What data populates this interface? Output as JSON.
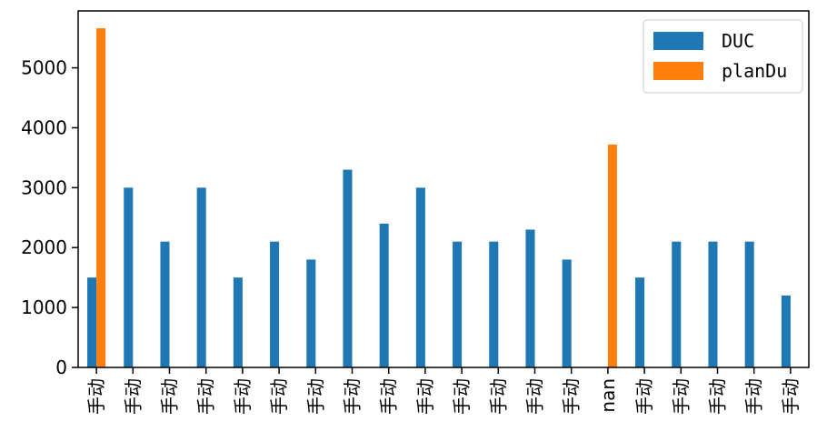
{
  "chart_data": {
    "type": "bar",
    "categories": [
      "手动",
      "手动",
      "手动",
      "手动",
      "手动",
      "手动",
      "手动",
      "手动",
      "手动",
      "手动",
      "手动",
      "手动",
      "手动",
      "手动",
      "nan",
      "手动",
      "手动",
      "手动",
      "手动",
      "手动"
    ],
    "series": [
      {
        "name": "DUC",
        "color": "#1f77b4",
        "values": [
          1500,
          3000,
          2100,
          3000,
          1500,
          2100,
          1800,
          3300,
          2400,
          3000,
          2100,
          2100,
          2300,
          1800,
          null,
          1500,
          2100,
          2100,
          2100,
          1200
        ]
      },
      {
        "name": "planDu",
        "color": "#ff7f0e",
        "values": [
          5660,
          null,
          null,
          null,
          null,
          null,
          null,
          null,
          null,
          null,
          null,
          null,
          null,
          null,
          3720,
          null,
          null,
          null,
          null,
          null
        ]
      }
    ],
    "ylim": [
      0,
      5950
    ],
    "yticks": [
      0,
      1000,
      2000,
      3000,
      4000,
      5000
    ],
    "legend_position": "top-right",
    "grid": false
  }
}
